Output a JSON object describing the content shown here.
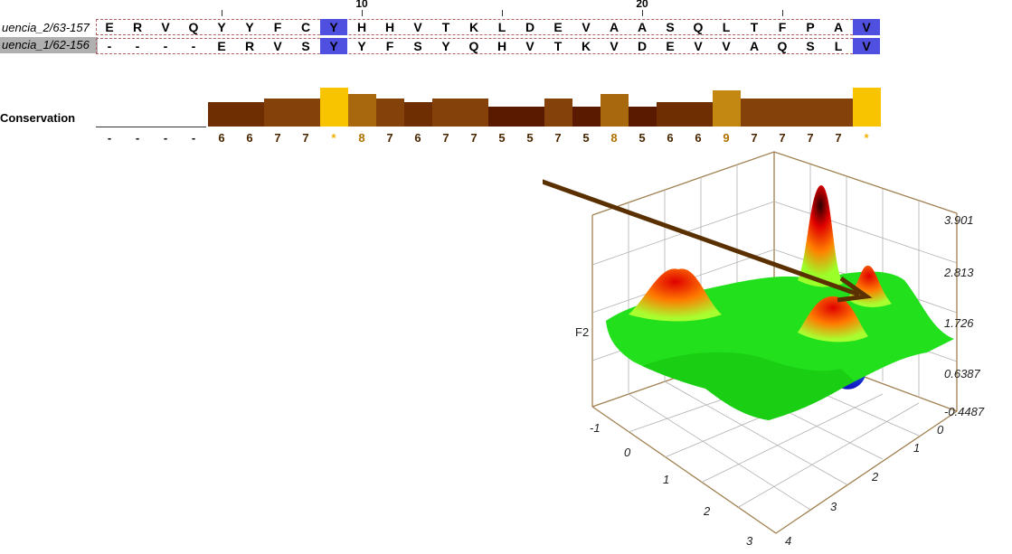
{
  "alignment": {
    "sequences": [
      {
        "name": "uencia_2/63-157",
        "residues": [
          "E",
          "R",
          "V",
          "Q",
          "Y",
          "Y",
          "F",
          "C",
          "Y",
          "H",
          "H",
          "V",
          "T",
          "K",
          "L",
          "D",
          "E",
          "V",
          "A",
          "A",
          "S",
          "Q",
          "L",
          "T",
          "F",
          "P",
          "A",
          "V"
        ]
      },
      {
        "name": "uencia_1/62-156",
        "residues": [
          "-",
          "-",
          "-",
          "-",
          "E",
          "R",
          "V",
          "S",
          "Y",
          "Y",
          "F",
          "S",
          "Y",
          "Q",
          "H",
          "V",
          "T",
          "K",
          "V",
          "D",
          "E",
          "V",
          "V",
          "A",
          "Q",
          "S",
          "L",
          "V"
        ]
      }
    ],
    "highlight_columns": [
      8,
      27
    ],
    "ruler": [
      {
        "col": 4,
        "label": ""
      },
      {
        "col": 9,
        "label": "10"
      },
      {
        "col": 14,
        "label": ""
      },
      {
        "col": 19,
        "label": "20"
      },
      {
        "col": 24,
        "label": ""
      }
    ],
    "highlight_color": "#5050e0"
  },
  "conservation": {
    "label": "Conservation",
    "values": [
      "-",
      "-",
      "-",
      "-",
      "6",
      "6",
      "7",
      "7",
      "*",
      "8",
      "7",
      "6",
      "7",
      "7",
      "5",
      "5",
      "7",
      "5",
      "8",
      "5",
      "6",
      "6",
      "9",
      "7",
      "7",
      "7",
      "7",
      "*"
    ]
  },
  "surface_plot": {
    "z_axis_label": "F2",
    "z_ticks": [
      "-0.4487",
      "0.6387",
      "1.726",
      "2.813",
      "3.901"
    ],
    "x_ticks_left": [
      "-1",
      "0",
      "1",
      "2",
      "3"
    ],
    "y_ticks_right": [
      "0",
      "1",
      "2",
      "3",
      "4"
    ]
  }
}
